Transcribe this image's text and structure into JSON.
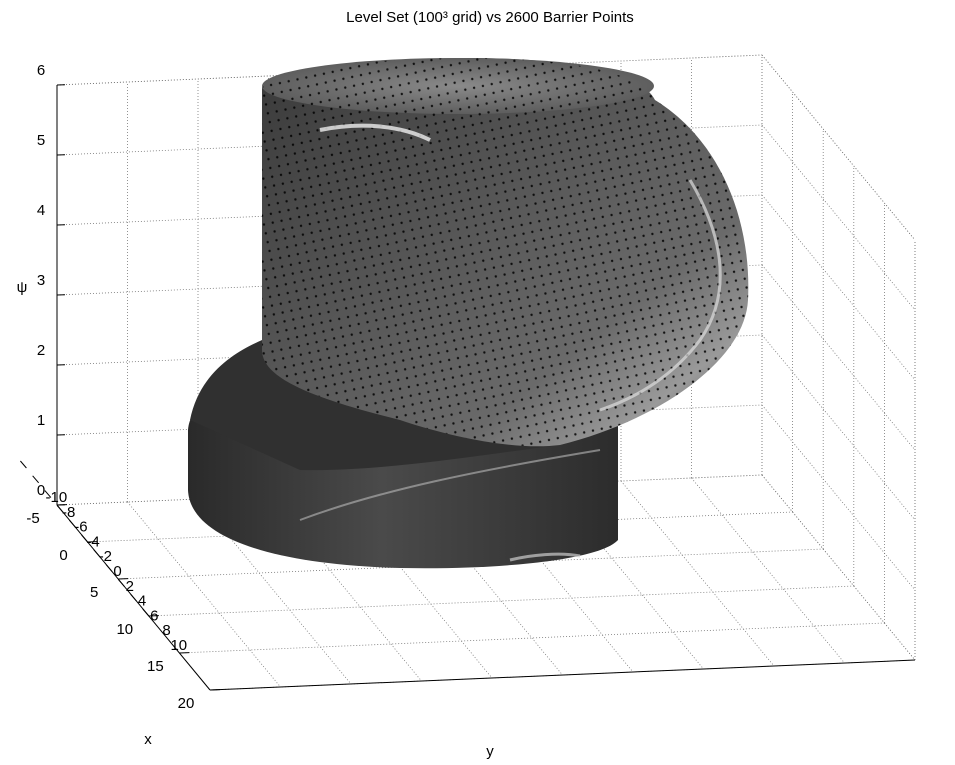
{
  "chart_data": {
    "type": "surface3d",
    "title": "Level Set (100³ grid) vs 2600 Barrier Points",
    "xlabel": "x",
    "ylabel": "y",
    "zlabel": "ψ",
    "xlim": [
      -5,
      20
    ],
    "xticks": [
      -5,
      0,
      5,
      10,
      15,
      20
    ],
    "ylim": [
      -10,
      10
    ],
    "yticks": [
      -10,
      -8,
      -6,
      -4,
      -2,
      0,
      2,
      4,
      6,
      8,
      10
    ],
    "zlim": [
      0,
      6
    ],
    "zticks": [
      0,
      1,
      2,
      3,
      4,
      5,
      6
    ],
    "grid": true
  }
}
